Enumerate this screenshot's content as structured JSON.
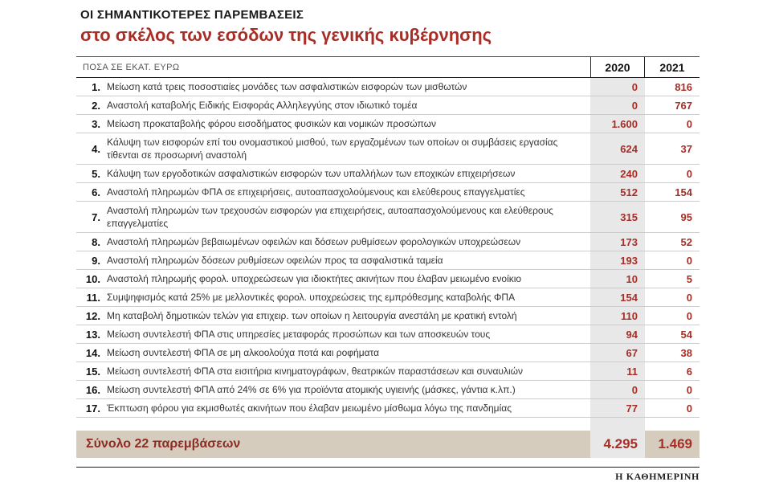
{
  "header": {
    "title": "ΟΙ ΣΗΜΑΝΤΙΚΟΤΕΡΕΣ ΠΑΡΕΜΒΑΣΕΙΣ",
    "subtitle": "στο σκέλος των εσόδων της γενικής κυβέρνησης"
  },
  "chart_data": {
    "type": "table",
    "title": "ΟΙ ΣΗΜΑΝΤΙΚΟΤΕΡΕΣ ΠΑΡΕΜΒΑΣΕΙΣ στο σκέλος των εσόδων της γενικής κυβέρνησης",
    "unit": "ΠΟΣΑ ΣΕ ΕΚΑΤ. ΕΥΡΩ",
    "columns": [
      "2020",
      "2021"
    ],
    "rows": [
      {
        "num": "1.",
        "desc": "Μείωση κατά τρεις ποσοστιαίες μονάδες των ασφαλιστικών εισφορών των μισθωτών",
        "v2020": "0",
        "v2021": "816"
      },
      {
        "num": "2.",
        "desc": "Αναστολή καταβολής Ειδικής Εισφοράς Αλληλεγγύης στον ιδιωτικό τομέα",
        "v2020": "0",
        "v2021": "767"
      },
      {
        "num": "3.",
        "desc": "Μείωση προκαταβολής φόρου εισοδήματος φυσικών και νομικών προσώπων",
        "v2020": "1.600",
        "v2021": "0"
      },
      {
        "num": "4.",
        "desc": "Κάλυψη των εισφορών επί του ονομαστικού μισθού, των εργαζομένων των οποίων οι συμβάσεις εργασίας τίθενται σε προσωρινή αναστολή",
        "v2020": "624",
        "v2021": "37"
      },
      {
        "num": "5.",
        "desc": "Κάλυψη των εργοδοτικών ασφαλιστικών εισφορών των υπαλλήλων των εποχικών επιχειρήσεων",
        "v2020": "240",
        "v2021": "0"
      },
      {
        "num": "6.",
        "desc": "Αναστολή πληρωμών ΦΠΑ σε επιχειρήσεις, αυτοαπασχολούμενους και ελεύθερους επαγγελματίες",
        "v2020": "512",
        "v2021": "154"
      },
      {
        "num": "7.",
        "desc": "Αναστολή πληρωμών των τρεχουσών εισφορών για επιχειρήσεις, αυτοαπασχολούμενους και ελεύθερους επαγγελματίες",
        "v2020": "315",
        "v2021": "95"
      },
      {
        "num": "8.",
        "desc": "Αναστολή πληρωμών βεβαιωμένων οφειλών και δόσεων ρυθμίσεων φορολογικών υποχρεώσεων",
        "v2020": "173",
        "v2021": "52"
      },
      {
        "num": "9.",
        "desc": "Αναστολή πληρωμών δόσεων ρυθμίσεων οφειλών προς τα ασφαλιστικά ταμεία",
        "v2020": "193",
        "v2021": "0"
      },
      {
        "num": "10.",
        "desc": "Αναστολή πληρωμής φορολ. υποχρεώσεων για ιδιοκτήτες ακινήτων που έλαβαν μειωμένο ενοίκιο",
        "v2020": "10",
        "v2021": "5"
      },
      {
        "num": "11.",
        "desc": "Συμψηφισμός κατά 25% με μελλοντικές φορολ. υποχρεώσεις της εμπρόθεσμης καταβολής ΦΠΑ",
        "v2020": "154",
        "v2021": "0"
      },
      {
        "num": "12.",
        "desc": "Μη καταβολή δημοτικών τελών για επιχειρ. των οποίων η λειτουργία ανεστάλη με κρατική εντολή",
        "v2020": "110",
        "v2021": "0"
      },
      {
        "num": "13.",
        "desc": "Μείωση συντελεστή ΦΠΑ στις υπηρεσίες μεταφοράς προσώπων και των αποσκευών τους",
        "v2020": "94",
        "v2021": "54"
      },
      {
        "num": "14.",
        "desc": "Μείωση συντελεστή ΦΠΑ σε μη αλκοολούχα ποτά και ροφήματα",
        "v2020": "67",
        "v2021": "38"
      },
      {
        "num": "15.",
        "desc": "Μείωση συντελεστή ΦΠΑ στα εισιτήρια κινηματογράφων, θεατρικών παραστάσεων και συναυλιών",
        "v2020": "11",
        "v2021": "6"
      },
      {
        "num": "16.",
        "desc": "Μείωση συντελεστή ΦΠΑ από 24% σε 6% για προϊόντα ατομικής υγιεινής (μάσκες, γάντια κ.λπ.)",
        "v2020": "0",
        "v2021": "0"
      },
      {
        "num": "17.",
        "desc": "Έκπτωση φόρου για εκμισθωτές ακινήτων που έλαβαν μειωμένο μίσθωμα λόγω της πανδημίας",
        "v2020": "77",
        "v2021": "0"
      }
    ],
    "total": {
      "label": "Σύνολο 22 παρεμβάσεων",
      "v2020": "4.295",
      "v2021": "1.469"
    }
  },
  "footer": {
    "source": "Η ΚΑΘΗΜΕΡΙΝΗ"
  },
  "colors": {
    "accent_red": "#a72e26",
    "total_label_red": "#8e2b22",
    "column_stripe_gray": "#e8e8e8",
    "total_band_beige": "#d5ccbe",
    "row_divider_gray": "#cccccc"
  }
}
